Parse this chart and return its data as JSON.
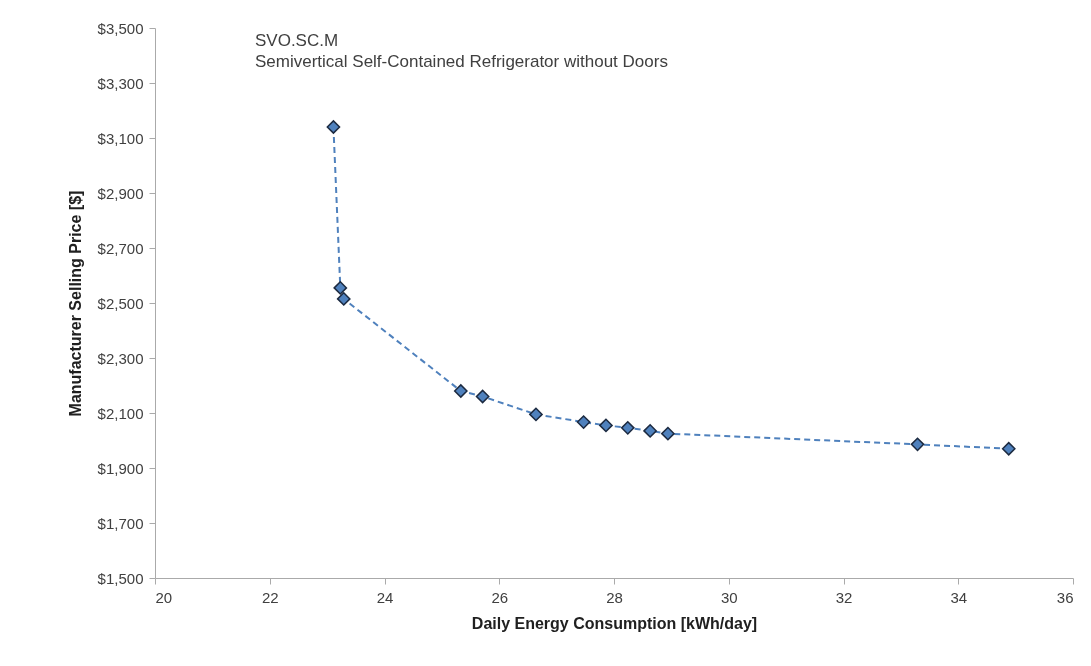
{
  "chart_data": {
    "type": "line",
    "title": "SVO.SC.M",
    "subtitle": "Semivertical Self-Contained Refrigerator without Doors",
    "xlabel": "Daily Energy Consumption [kWh/day]",
    "ylabel": "Manufacturer Selling Price [$]",
    "series": [
      {
        "color": "#4f81bd",
        "x": [
          23.11,
          23.23,
          23.29,
          25.33,
          25.71,
          26.64,
          27.47,
          27.86,
          28.24,
          28.63,
          28.94,
          33.29,
          34.88
        ],
        "values": [
          3140,
          2555,
          2515,
          2180,
          2160,
          2095,
          2067,
          2055,
          2046,
          2035,
          2025,
          1986,
          1970
        ]
      }
    ],
    "xlim": [
      20,
      36
    ],
    "xticks": [
      20,
      22,
      24,
      26,
      28,
      30,
      32,
      34,
      36
    ],
    "ylim": [
      1500,
      3500
    ],
    "yticks": [
      {
        "value": 1500,
        "label": "$1,500"
      },
      {
        "value": 1700,
        "label": "$1,700"
      },
      {
        "value": 1900,
        "label": "$1,900"
      },
      {
        "value": 2100,
        "label": "$2,100"
      },
      {
        "value": 2300,
        "label": "$2,300"
      },
      {
        "value": 2500,
        "label": "$2,500"
      },
      {
        "value": 2700,
        "label": "$2,700"
      },
      {
        "value": 2900,
        "label": "$2,900"
      },
      {
        "value": 3100,
        "label": "$3,100"
      },
      {
        "value": 3300,
        "label": "$3,300"
      },
      {
        "value": 3500,
        "label": "$3,500"
      }
    ],
    "grid": false,
    "marker": "diamond",
    "line_style": "dashed"
  }
}
